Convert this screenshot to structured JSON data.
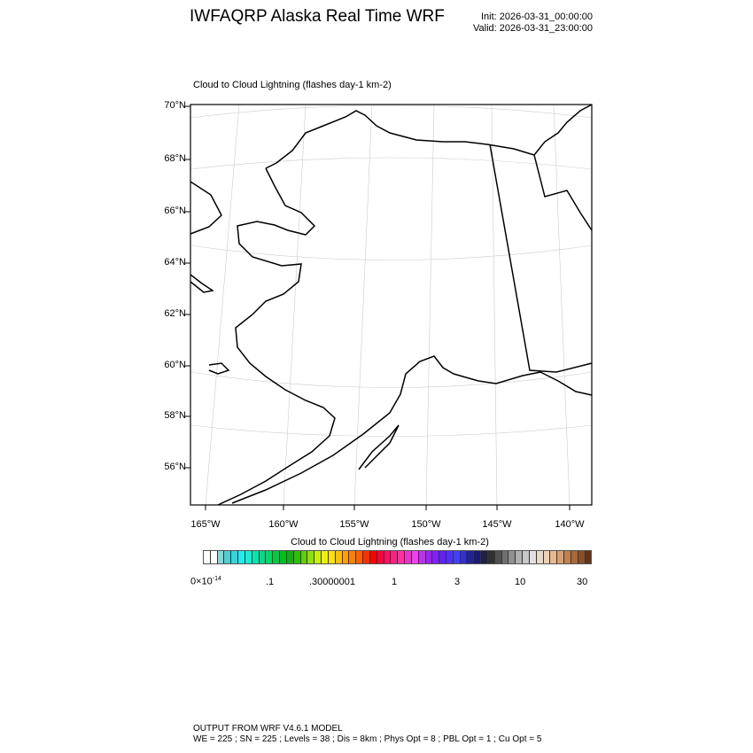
{
  "header": {
    "title": "IWFAQRP Alaska Real Time WRF",
    "init": "Init: 2026-03-31_00:00:00",
    "valid": "Valid: 2026-03-31_23:00:00"
  },
  "map": {
    "subtitle": "Cloud to Cloud Lightning   (flashes day-1 km-2)",
    "lat_labels": [
      "70°N",
      "68°N",
      "66°N",
      "64°N",
      "62°N",
      "60°N",
      "58°N",
      "56°N"
    ],
    "lon_labels": [
      "165°W",
      "160°W",
      "155°W",
      "150°W",
      "145°W",
      "140°W"
    ],
    "field_shown": "none (all values below lowest contour)"
  },
  "colorbar": {
    "title": "Cloud to Cloud Lightning  (flashes day-1 km-2)",
    "labels": [
      "0×10-14",
      ".1",
      ".30000001",
      "1",
      "3",
      "10",
      "30"
    ],
    "label_main": "0×10",
    "label_exp": "-14",
    "colors": [
      "#ffffff",
      "#ffffff",
      "#7fdada",
      "#4fcfd0",
      "#30d8e0",
      "#20ecf0",
      "#10f0d8",
      "#00e8b0",
      "#00dc88",
      "#00d868",
      "#00cc40",
      "#00c020",
      "#10b010",
      "#30c000",
      "#60d000",
      "#90e000",
      "#c8f000",
      "#f0f000",
      "#ffe000",
      "#ffc000",
      "#ffa000",
      "#ff8000",
      "#ff6000",
      "#ff3000",
      "#ff0000",
      "#ff0040",
      "#ff1060",
      "#ff2080",
      "#ff30a0",
      "#f030d0",
      "#f040f0",
      "#c030f0",
      "#a020ff",
      "#8020ff",
      "#6020ff",
      "#5030ff",
      "#4040ff",
      "#3030d0",
      "#2020a0",
      "#1a1a70",
      "#202040",
      "#303030",
      "#505050",
      "#707070",
      "#909090",
      "#b0b0b0",
      "#c8c8c8",
      "#e0e0e0",
      "#ead8c8",
      "#f0d0b0",
      "#e8b890",
      "#d8a070",
      "#c08050",
      "#a86838",
      "#885028",
      "#683010"
    ]
  },
  "footer": {
    "line1": "OUTPUT FROM WRF V4.6.1 MODEL",
    "line2": "WE = 225 ; SN = 225 ; Levels = 38 ; Dis = 8km ; Phys Opt = 8 ; PBL Opt = 1 ; Cu Opt = 5"
  }
}
